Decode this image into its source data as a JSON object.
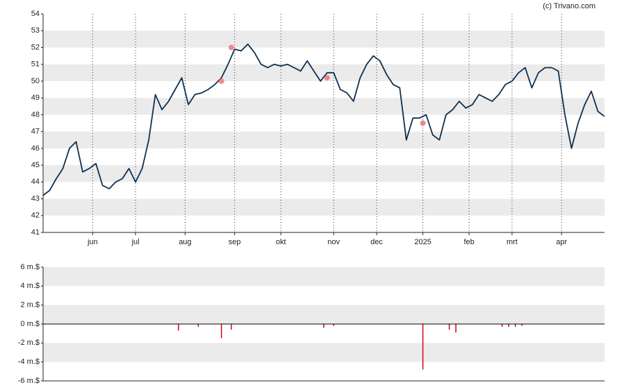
{
  "chart_data": [
    {
      "type": "line",
      "attribution": "(c) Trivano.com",
      "x": [
        0,
        2,
        4,
        6,
        8,
        10,
        12,
        14,
        16,
        18,
        20,
        22,
        24,
        26,
        28,
        30,
        32,
        34,
        36,
        38,
        40,
        42,
        44,
        46,
        48,
        50,
        52,
        54,
        56,
        58,
        60,
        62,
        64,
        66,
        68,
        70,
        72,
        74,
        76,
        78,
        80,
        82,
        84,
        86,
        88,
        90,
        92,
        94,
        96,
        98,
        100,
        102,
        104,
        106,
        108,
        110,
        112,
        114,
        116,
        118,
        120,
        122,
        124,
        126,
        128,
        130,
        132,
        134,
        136,
        138,
        140,
        142,
        144,
        146,
        148,
        150,
        152,
        154,
        156,
        158,
        160,
        162,
        164,
        166,
        168,
        170
      ],
      "series": [
        {
          "color": "#0d3050",
          "values": [
            43.2,
            43.5,
            44.2,
            44.8,
            46.0,
            46.4,
            44.6,
            44.8,
            45.1,
            43.8,
            43.6,
            44.0,
            44.2,
            44.8,
            44.0,
            44.8,
            46.5,
            49.2,
            48.3,
            48.8,
            49.5,
            50.2,
            48.6,
            49.2,
            49.3,
            49.5,
            49.8,
            50.2,
            51.0,
            51.9,
            51.8,
            52.2,
            51.7,
            51.0,
            50.8,
            51.0,
            50.9,
            51.0,
            50.8,
            50.6,
            51.2,
            50.6,
            50.0,
            50.5,
            50.5,
            49.5,
            49.3,
            48.8,
            50.2,
            51.0,
            51.5,
            51.2,
            50.4,
            49.8,
            49.6,
            46.5,
            47.8,
            47.8,
            48.0,
            46.8,
            46.5,
            48.0,
            48.3,
            48.8,
            48.4,
            48.6,
            49.2,
            49.0,
            48.8,
            49.2,
            49.8,
            50.0,
            50.5,
            50.8,
            49.6,
            50.5,
            50.8,
            50.8,
            50.6,
            48.0,
            46.0,
            47.5,
            48.6,
            49.4,
            48.2,
            47.9
          ]
        }
      ],
      "markers": {
        "color": "#f06070",
        "x": [
          57,
          54,
          86,
          115
        ],
        "values": [
          52.0,
          50.0,
          50.2,
          47.5
        ]
      },
      "xlim": [
        0,
        170
      ],
      "xticks": [
        {
          "value": 15,
          "label": "jun"
        },
        {
          "value": 28,
          "label": "jul"
        },
        {
          "value": 43,
          "label": "aug"
        },
        {
          "value": 58,
          "label": "sep"
        },
        {
          "value": 72,
          "label": "okt"
        },
        {
          "value": 88,
          "label": "nov"
        },
        {
          "value": 101,
          "label": "dec"
        },
        {
          "value": 115,
          "label": "2025"
        },
        {
          "value": 129,
          "label": "feb"
        },
        {
          "value": 142,
          "label": "mrt"
        },
        {
          "value": 157,
          "label": "apr"
        }
      ],
      "ylim": [
        41,
        54
      ],
      "yticks": [
        41,
        42,
        43,
        44,
        45,
        46,
        47,
        48,
        49,
        50,
        51,
        52,
        53,
        54
      ],
      "grid": true
    },
    {
      "type": "bar",
      "color": "#d0021b",
      "x": [
        41,
        47,
        54,
        57,
        85,
        88,
        115,
        123,
        125,
        139,
        141,
        143,
        145
      ],
      "values": [
        -0.7,
        -0.3,
        -1.5,
        -0.6,
        -0.4,
        -0.2,
        -4.8,
        -0.6,
        -0.9,
        -0.3,
        -0.3,
        -0.3,
        -0.2
      ],
      "xlim": [
        0,
        170
      ],
      "ylim": [
        -6,
        6
      ],
      "yticks": [
        {
          "value": -6,
          "label": "-6 m.$"
        },
        {
          "value": -4,
          "label": "-4 m.$"
        },
        {
          "value": -2,
          "label": "-2 m.$"
        },
        {
          "value": 0,
          "label": "0 m.$"
        },
        {
          "value": 2,
          "label": "2 m.$"
        },
        {
          "value": 4,
          "label": "4 m.$"
        },
        {
          "value": 6,
          "label": "6 m.$"
        }
      ],
      "grid": true
    }
  ]
}
